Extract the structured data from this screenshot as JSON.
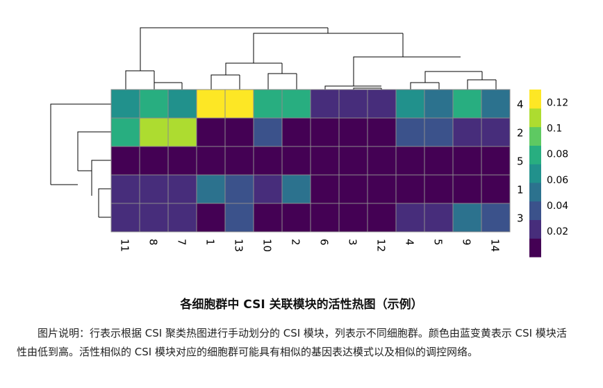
{
  "chart_data": {
    "type": "heatmap",
    "columns": [
      "11",
      "8",
      "7",
      "1",
      "13",
      "10",
      "2",
      "6",
      "3",
      "12",
      "4",
      "5",
      "9",
      "14"
    ],
    "rows": [
      "4",
      "2",
      "5",
      "1",
      "3"
    ],
    "values": [
      [
        0.061,
        0.076,
        0.065,
        0.128,
        0.128,
        0.082,
        0.083,
        0.02,
        0.02,
        0.022,
        0.058,
        0.05,
        0.075,
        0.047
      ],
      [
        0.082,
        0.108,
        0.105,
        0.002,
        0.002,
        0.04,
        0.002,
        0.002,
        0.002,
        0.002,
        0.037,
        0.035,
        0.025,
        0.022
      ],
      [
        0.002,
        0.002,
        0.002,
        0.002,
        0.002,
        0.002,
        0.002,
        0.002,
        0.002,
        0.002,
        0.002,
        0.002,
        0.002,
        0.002
      ],
      [
        0.025,
        0.027,
        0.025,
        0.05,
        0.035,
        0.022,
        0.05,
        0.002,
        0.002,
        0.002,
        0.002,
        0.002,
        0.002,
        0.002
      ],
      [
        0.025,
        0.025,
        0.025,
        0.002,
        0.038,
        0.002,
        0.002,
        0.002,
        0.002,
        0.002,
        0.022,
        0.022,
        0.05,
        0.038
      ]
    ],
    "color_scale": {
      "min": 0,
      "max": 0.13,
      "ticks": [
        0.12,
        0.1,
        0.08,
        0.06,
        0.04,
        0.02
      ],
      "tick_labels": [
        "0.12",
        "0.1",
        "0.08",
        "0.06",
        "0.04",
        "0.02"
      ],
      "colors": [
        "#440154",
        "#472d7b",
        "#3b528b",
        "#2c728e",
        "#21918c",
        "#28ae80",
        "#5ec962",
        "#addc30",
        "#fde725"
      ]
    },
    "grid": true,
    "legend_position": "right",
    "column_dendrogram": true,
    "row_dendrogram": true
  },
  "caption": {
    "title": "各细胞群中 CSI 关联模块的活性热图（示例）",
    "text": "图片说明：行表示根据 CSI 聚类热图进行手动划分的 CSI 模块，列表示不同细胞群。颜色由蓝变黄表示 CSI 模块活性由低到高。活性相似的 CSI 模块对应的细胞群可能具有相似的基因表达模式以及相似的调控网络。"
  }
}
